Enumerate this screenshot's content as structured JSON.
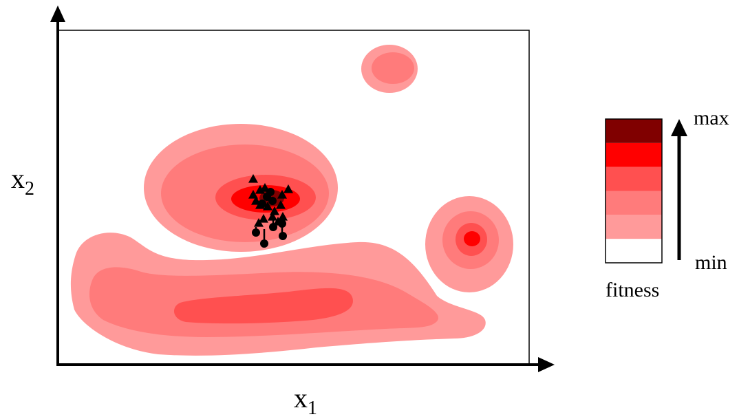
{
  "axes": {
    "x_label_base": "x",
    "x_label_sub": "1",
    "y_label_base": "x",
    "y_label_sub": "2"
  },
  "legend": {
    "top_label": "max",
    "bottom_label": "min",
    "caption": "fitness",
    "levels": [
      "#ffffff",
      "#ff9a9a",
      "#ff7b7b",
      "#ff5050",
      "#ff0000",
      "#800000"
    ]
  },
  "colors": {
    "level1": "#ff9a9a",
    "level2": "#ff7b7b",
    "level3": "#ff5050",
    "level4": "#ff0000",
    "level5": "#800000",
    "frame": "#000000"
  },
  "markers": {
    "count_circles": 9,
    "count_triangles": 16,
    "marker_color": "#000000"
  }
}
